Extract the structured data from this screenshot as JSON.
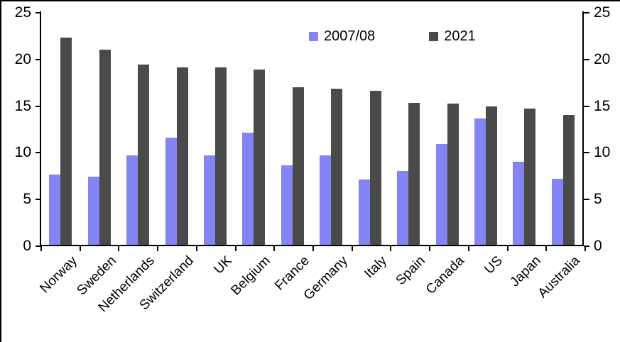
{
  "frame": {
    "background_color": "#ffffff",
    "border_color": "#000000"
  },
  "legend": {
    "items": [
      {
        "label": "2007/08",
        "color": "#8484F5"
      },
      {
        "label": "2021",
        "color": "#4A4A4A"
      }
    ]
  },
  "chart_data": {
    "type": "bar",
    "title": "",
    "xlabel": "",
    "ylabel": "",
    "categories": [
      "Norway",
      "Sweden",
      "Netherlands",
      "Switzerland",
      "UK",
      "Belgium",
      "France",
      "Germany",
      "Italy",
      "Spain",
      "Canada",
      "US",
      "Japan",
      "Australia"
    ],
    "series": [
      {
        "name": "2007/08",
        "color": "#8484F5",
        "values": [
          7.5,
          7.3,
          9.6,
          11.5,
          9.6,
          12.0,
          8.5,
          9.6,
          7.0,
          7.9,
          10.8,
          13.5,
          8.9,
          7.1
        ]
      },
      {
        "name": "2021",
        "color": "#4A4A4A",
        "values": [
          22.2,
          20.9,
          19.3,
          19.0,
          19.0,
          18.8,
          16.9,
          16.7,
          16.5,
          15.2,
          15.1,
          14.8,
          14.6,
          13.9
        ]
      }
    ],
    "ylim": [
      0,
      25
    ],
    "yticks": [
      0,
      5,
      10,
      15,
      20,
      25
    ],
    "y_axis_sides": [
      "left",
      "right"
    ],
    "grid": false,
    "legend_position": "top-inside",
    "bar_color_2007_08": "#8484F5",
    "bar_color_2021": "#4A4A4A",
    "axis_color": "#000000"
  }
}
